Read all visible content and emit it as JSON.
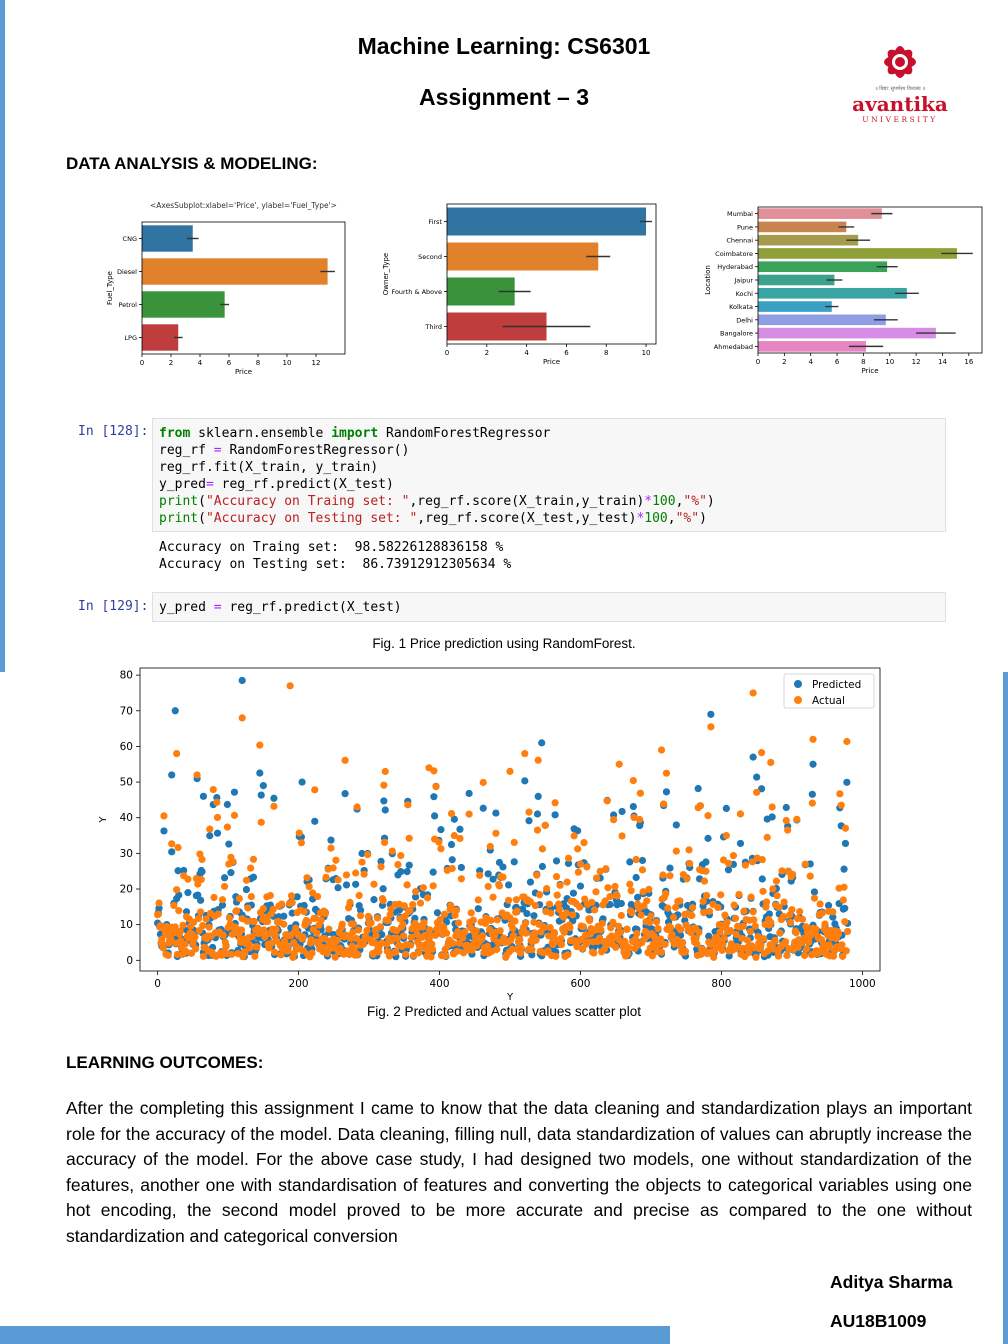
{
  "header": {
    "title": "Machine Learning: CS6301",
    "subtitle": "Assignment – 3",
    "logo": {
      "tagline": "॥ विद्या: सुपर्णस्थ विश्वस्य ॥",
      "name": "avantika",
      "sub": "UNIVERSITY",
      "color": "#c8102e"
    }
  },
  "section1_heading": "DATA ANALYSIS & MODELING:",
  "chart_data": [
    {
      "type": "bar",
      "orientation": "horizontal",
      "annotation": "<AxesSubplot:xlabel='Price', ylabel='Fuel_Type'>",
      "xlabel": "Price",
      "ylabel": "Fuel_Type",
      "categories": [
        "CNG",
        "Diesel",
        "Petrol",
        "LPG"
      ],
      "values": [
        3.5,
        12.8,
        5.7,
        2.5
      ],
      "error": [
        0.4,
        0.5,
        0.3,
        0.3
      ],
      "colors": [
        "#3274a1",
        "#e1812c",
        "#3a923a",
        "#c03d3e"
      ],
      "xlim": [
        0,
        14
      ],
      "xticks": [
        0,
        2,
        4,
        6,
        8,
        10,
        12
      ]
    },
    {
      "type": "bar",
      "orientation": "horizontal",
      "xlabel": "Price",
      "ylabel": "Owner_Type",
      "categories": [
        "First",
        "Second",
        "Fourth & Above",
        "Third"
      ],
      "values": [
        10.0,
        7.6,
        3.4,
        5.0
      ],
      "error": [
        0.3,
        0.6,
        0.8,
        2.2
      ],
      "colors": [
        "#3274a1",
        "#e1812c",
        "#3a923a",
        "#c03d3e"
      ],
      "xlim": [
        0,
        10.5
      ],
      "xticks": [
        0,
        2,
        4,
        6,
        8,
        10
      ]
    },
    {
      "type": "bar",
      "orientation": "horizontal",
      "xlabel": "Price",
      "ylabel": "Location",
      "categories": [
        "Mumbai",
        "Pune",
        "Chennai",
        "Coimbatore",
        "Hyderabad",
        "Jaipur",
        "Kochi",
        "Kolkata",
        "Delhi",
        "Bangalore",
        "Ahmedabad"
      ],
      "values": [
        9.4,
        6.7,
        7.6,
        15.1,
        9.8,
        5.8,
        11.3,
        5.6,
        9.7,
        13.5,
        8.2
      ],
      "error": [
        0.8,
        0.6,
        0.9,
        1.2,
        0.8,
        0.6,
        0.9,
        0.5,
        0.9,
        1.5,
        1.3
      ],
      "colors": [
        "#e1909a",
        "#c9844e",
        "#a59b4c",
        "#8fa038",
        "#3aa259",
        "#3da28b",
        "#3aa3a3",
        "#3aa0c4",
        "#8f9de3",
        "#d78ce6",
        "#e685c2"
      ],
      "xlim": [
        0,
        17
      ],
      "xticks": [
        0,
        2,
        4,
        6,
        8,
        10,
        12,
        14,
        16
      ]
    },
    {
      "type": "scatter",
      "title": "",
      "xlabel": "Y",
      "ylabel": "Y",
      "xlim": [
        -25,
        1025
      ],
      "ylim": [
        -3,
        82
      ],
      "xticks": [
        0,
        200,
        400,
        600,
        800,
        1000
      ],
      "yticks": [
        0,
        10,
        20,
        30,
        40,
        50,
        60,
        70,
        80
      ],
      "legend_position": "top-right",
      "n_points": 980,
      "series": [
        {
          "name": "Predicted",
          "color": "#1f77b4",
          "notable_points": [
            [
              25,
              70
            ],
            [
              120,
              78.5
            ],
            [
              785,
              69
            ],
            [
              545,
              61
            ],
            [
              930,
              55
            ],
            [
              845,
              57
            ],
            [
              20,
              52
            ],
            [
              205,
              50
            ],
            [
              150,
              49
            ],
            [
              65,
              46
            ]
          ]
        },
        {
          "name": "Actual",
          "color": "#ff7f0e",
          "notable_points": [
            [
              188,
              77
            ],
            [
              845,
              75
            ],
            [
              120,
              68
            ],
            [
              785,
              65.5
            ],
            [
              930,
              62
            ],
            [
              27,
              58
            ],
            [
              385,
              54
            ],
            [
              500,
              53
            ],
            [
              655,
              55
            ],
            [
              715,
              59
            ],
            [
              870,
              55.5
            ]
          ]
        }
      ]
    }
  ],
  "code": {
    "cell1_prompt": "In [128]:",
    "cell1_lines": [
      [
        [
          "kw",
          "from"
        ],
        [
          "t",
          " sklearn.ensemble "
        ],
        [
          "kw",
          "import"
        ],
        [
          "t",
          " RandomForestRegressor"
        ]
      ],
      [
        [
          "t",
          "reg_rf "
        ],
        [
          "op",
          "="
        ],
        [
          "t",
          " RandomForestRegressor()"
        ]
      ],
      [
        [
          "t",
          "reg_rf.fit(X_train, y_train)"
        ]
      ],
      [
        [
          "t",
          "y_pred"
        ],
        [
          "op",
          "="
        ],
        [
          "t",
          " reg_rf.predict(X_test)"
        ]
      ],
      [
        [
          "kw2",
          "print"
        ],
        [
          "t",
          "("
        ],
        [
          "str",
          "\"Accuracy on Traing set: \""
        ],
        [
          "t",
          ",reg_rf.score(X_train,y_train)"
        ],
        [
          "op",
          "*"
        ],
        [
          "num",
          "100"
        ],
        [
          "t",
          ","
        ],
        [
          "str",
          "\"%\""
        ],
        [
          "t",
          ")"
        ]
      ],
      [
        [
          "kw2",
          "print"
        ],
        [
          "t",
          "("
        ],
        [
          "str",
          "\"Accuracy on Testing set: \""
        ],
        [
          "t",
          ",reg_rf.score(X_test,y_test)"
        ],
        [
          "op",
          "*"
        ],
        [
          "num",
          "100"
        ],
        [
          "t",
          ","
        ],
        [
          "str",
          "\"%\""
        ],
        [
          "t",
          ")"
        ]
      ]
    ],
    "output_line1": "Accuracy on Traing set:  98.58226128836158 %",
    "output_line2": "Accuracy on Testing set:  86.73912912305634 %",
    "cell2_prompt": "In [129]:",
    "cell2_lines": [
      [
        [
          "t",
          "y_pred "
        ],
        [
          "op",
          "="
        ],
        [
          "t",
          " reg_rf.predict(X_test)"
        ]
      ]
    ]
  },
  "fig1_caption": "Fig. 1 Price prediction using RandomForest.",
  "fig2_caption": "Fig. 2 Predicted and Actual values scatter plot",
  "section2_heading": "LEARNING OUTCOMES:",
  "outcomes_text": "After the completing this assignment I came to know that the data cleaning and standardization plays an important role for the accuracy of the model. Data cleaning, filling null, data standardization of values can abruptly increase the accuracy of the model. For the above case study, I had designed two models, one without standardization of the features, another one with standardisation of features and converting the objects to categorical variables using one hot encoding, the second model proved to be more accurate and precise as compared to the one without standardization and categorical conversion",
  "author": {
    "name": "Aditya Sharma",
    "id": "AU18B1009"
  },
  "accent_color": "#5b9bd5"
}
